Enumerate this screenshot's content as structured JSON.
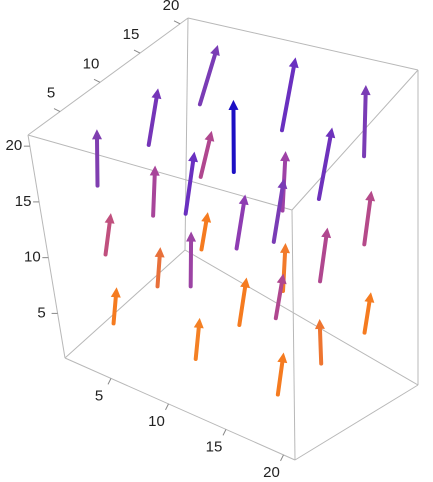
{
  "chart_data": {
    "type": "vector3d",
    "xlim": [
      1,
      21
    ],
    "ylim": [
      1,
      21
    ],
    "zlim": [
      1,
      21
    ],
    "xticks": [
      5,
      10,
      15,
      20
    ],
    "yticks": [
      5,
      10,
      15,
      20
    ],
    "zticks": [
      5,
      10,
      15,
      20
    ],
    "x": [
      4,
      11,
      18,
      4,
      11,
      18,
      4,
      11,
      18,
      4,
      11,
      18,
      4,
      11,
      18,
      4,
      11,
      18,
      4,
      11,
      18,
      4,
      11,
      18,
      4,
      11,
      18
    ],
    "y": [
      18,
      18,
      18,
      11,
      11,
      11,
      4,
      4,
      4,
      18,
      18,
      18,
      11,
      11,
      11,
      4,
      4,
      4,
      18,
      18,
      18,
      11,
      11,
      11,
      4,
      4,
      4
    ],
    "z": [
      4,
      4,
      4,
      4,
      4,
      4,
      4,
      4,
      4,
      10,
      10,
      10,
      10,
      10,
      10,
      10,
      10,
      10,
      16,
      16,
      16,
      16,
      16,
      16,
      16,
      16,
      16
    ],
    "u": [
      0.3,
      -0.2,
      0.4,
      0.1,
      0.2,
      -0.3,
      0.2,
      0.3,
      0.1,
      0.5,
      -0.4,
      0.3,
      -0.2,
      0.6,
      0.2,
      0.4,
      -0.3,
      0.5,
      0.6,
      0.1,
      -0.5,
      0.4,
      0.0,
      0.3,
      -0.4,
      0.5,
      0.2
    ],
    "v": [
      0.5,
      0.8,
      0.3,
      0.6,
      1.0,
      0.4,
      0.7,
      0.5,
      0.9,
      0.8,
      1.2,
      0.6,
      1.0,
      0.5,
      0.9,
      0.7,
      1.1,
      0.4,
      1.5,
      1.8,
      1.2,
      1.0,
      0.3,
      1.6,
      1.3,
      0.9,
      1.4
    ],
    "w": [
      3,
      3.2,
      2.8,
      3.1,
      3.4,
      3,
      2.9,
      3.3,
      3,
      3.6,
      3.8,
      3.5,
      3.7,
      4.2,
      3.6,
      3.4,
      3.9,
      3.5,
      4.3,
      4.6,
      4.2,
      4.4,
      5.5,
      4.5,
      4.1,
      4.8,
      4.3
    ],
    "colors": [
      "#f57b20",
      "#f27a2a",
      "#f57b20",
      "#e8703a",
      "#f57b20",
      "#ee7530",
      "#f57b20",
      "#f48024",
      "#f57b20",
      "#b0478f",
      "#9e42a6",
      "#b54a8a",
      "#a8459a",
      "#8e3cb2",
      "#b0478f",
      "#c0507e",
      "#9c43a4",
      "#b0478f",
      "#7a3cb5",
      "#6a30c0",
      "#7a3cb5",
      "#7535b8",
      "#1c0fc4",
      "#6e32bc",
      "#7f3eb0",
      "#6a30c0",
      "#7a3cb5"
    ]
  }
}
